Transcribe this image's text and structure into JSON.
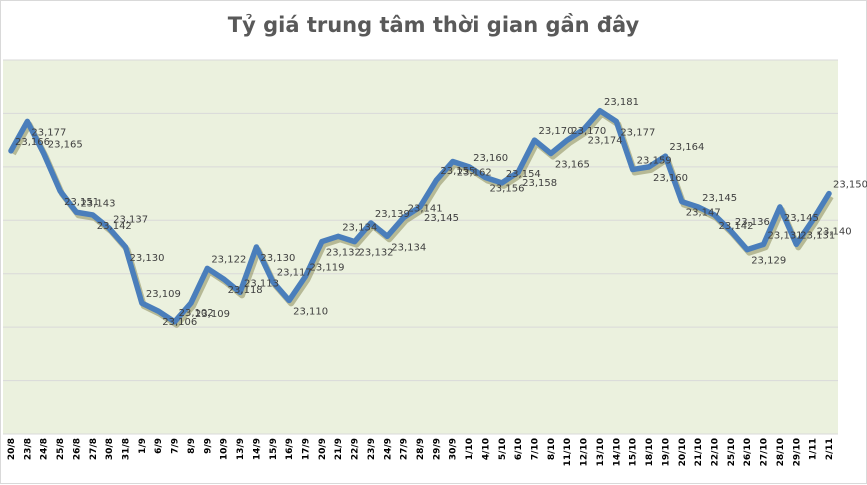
{
  "chart_data": {
    "type": "line",
    "title": "Tỷ giá trung tâm thời gian gần đây",
    "xlabel": "",
    "ylabel": "",
    "ylim": [
      23060,
      23200
    ],
    "grid": true,
    "legend": "none",
    "categories": [
      "20/8",
      "23/8",
      "24/8",
      "25/8",
      "26/8",
      "27/8",
      "30/8",
      "31/8",
      "1/9",
      "6/9",
      "7/9",
      "8/9",
      "9/9",
      "10/9",
      "13/9",
      "14/9",
      "15/9",
      "16/9",
      "17/9",
      "20/9",
      "21/9",
      "22/9",
      "23/9",
      "24/9",
      "27/9",
      "28/9",
      "29/9",
      "30/9",
      "1/10",
      "4/10",
      "5/10",
      "6/10",
      "7/10",
      "8/10",
      "11/10",
      "12/10",
      "13/10",
      "14/10",
      "15/10",
      "18/10",
      "19/10",
      "20/10",
      "21/10",
      "22/10",
      "25/10",
      "26/10",
      "27/10",
      "28/10",
      "29/10",
      "1/11",
      "2/11"
    ],
    "series": [
      {
        "name": "Tỷ giá trung tâm",
        "color": "#4a7ebb",
        "values": [
          23166,
          23177,
          23165,
          23151,
          23143,
          23142,
          23137,
          23130,
          23109,
          23106,
          23102,
          23109,
          23122,
          23118,
          23113,
          23130,
          23117,
          23110,
          23119,
          23132,
          23134,
          23132,
          23139,
          23134,
          23141,
          23145,
          23155,
          23162,
          23160,
          23156,
          23154,
          23158,
          23170,
          23165,
          23170,
          23174,
          23181,
          23177,
          23159,
          23160,
          23164,
          23147,
          23145,
          23142,
          23136,
          23129,
          23131,
          23145,
          23131,
          23140,
          23150
        ]
      }
    ]
  },
  "colors": {
    "plot_background": "#ebf1de",
    "gridline": "#d9d9d9",
    "line": "#4a7ebb",
    "title": "#595959"
  }
}
